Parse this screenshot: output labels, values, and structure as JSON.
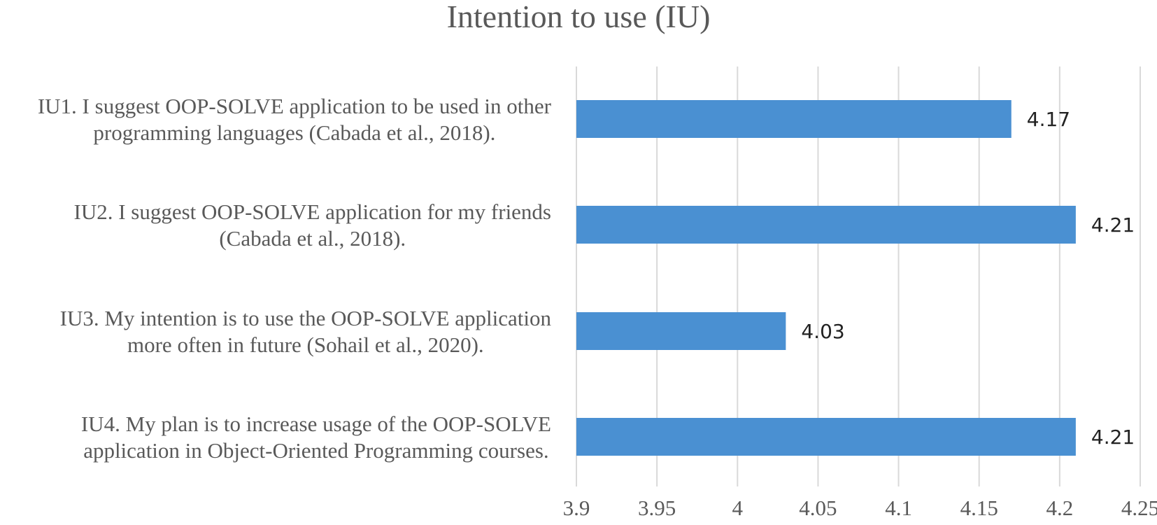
{
  "chart_data": {
    "type": "bar",
    "orientation": "horizontal",
    "title": "Intention to use (IU)",
    "xlabel": "",
    "ylabel": "",
    "categories": [
      [
        "IU1. I suggest OOP-SOLVE application to be used in other",
        "programming languages (Cabada et al., 2018)."
      ],
      [
        "IU2. I suggest OOP-SOLVE application for my friends",
        "(Cabada et al., 2018)."
      ],
      [
        "IU3. My intention is to use the OOP-SOLVE application",
        "more often in future (Sohail et al., 2020)."
      ],
      [
        "IU4. My plan is to increase usage of the OOP-SOLVE",
        "application in Object-Oriented Programming courses."
      ]
    ],
    "values": [
      4.17,
      4.21,
      4.03,
      4.21
    ],
    "data_labels": [
      "4.17",
      "4.21",
      "4.03",
      "4.21"
    ],
    "xlim": [
      3.9,
      4.25
    ],
    "ticks": [
      3.9,
      3.95,
      4,
      4.05,
      4.1,
      4.15,
      4.2,
      4.25
    ],
    "tick_labels": [
      "3.9",
      "3.95",
      "4",
      "4.05",
      "4.1",
      "4.15",
      "4.2",
      "4.25"
    ],
    "grid": true,
    "legend": "none",
    "colors": {
      "bar": "#4A90D2",
      "grid": "#D9D9D9",
      "text": "#595959",
      "data_label": "#222222"
    }
  }
}
